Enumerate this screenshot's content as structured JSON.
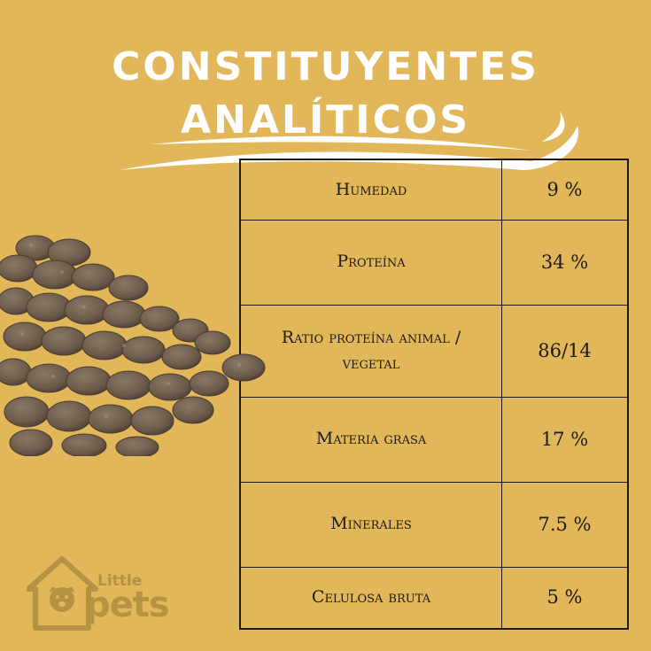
{
  "title": {
    "line1": "CONSTITUYENTES",
    "line2": "ANALÍTICOS"
  },
  "table": {
    "rows": [
      {
        "label": "Humedad",
        "value": "9 %"
      },
      {
        "label": "Proteína",
        "value": "34 %"
      },
      {
        "label": "Ratio proteína animal / vegetal",
        "value": "86/14"
      },
      {
        "label": "Materia grasa",
        "value": "17 %"
      },
      {
        "label": "Minerales",
        "value": "7.5 %"
      },
      {
        "label": "Celulosa bruta",
        "value": "5 %"
      }
    ]
  },
  "logo": {
    "small": "Little",
    "big": "pets"
  },
  "colors": {
    "background": "#e1b759",
    "title": "#ffffff",
    "table_lines": "#1f1a10",
    "logo": "#b59343",
    "kibble": "#6b5a4a"
  },
  "icons": [
    "dog-food-kibble-pile",
    "little-pets-house-logo"
  ]
}
